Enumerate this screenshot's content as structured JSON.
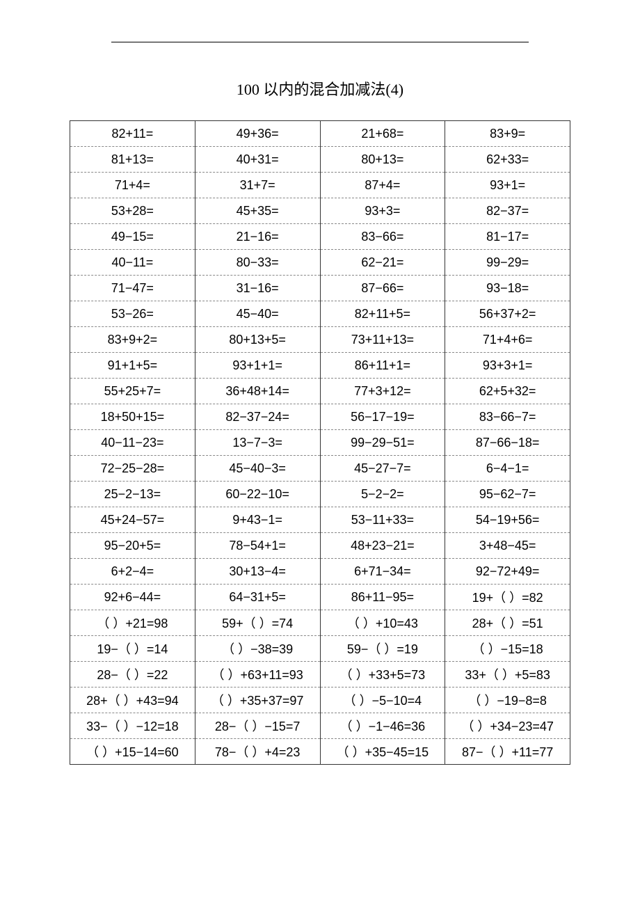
{
  "title": "100 以内的混合加减法(4)",
  "table": {
    "type": "table",
    "columns": 4,
    "cell_fontsize": 18,
    "title_fontsize": 22,
    "border_color": "#333333",
    "dash_border_color": "#888888",
    "background_color": "#ffffff",
    "text_color": "#000000",
    "rows": [
      [
        "82+11=",
        "49+36=",
        "21+68=",
        "83+9="
      ],
      [
        "81+13=",
        "40+31=",
        "80+13=",
        "62+33="
      ],
      [
        "71+4=",
        "31+7=",
        "87+4=",
        "93+1="
      ],
      [
        "53+28=",
        "45+35=",
        "93+3=",
        "82−37="
      ],
      [
        "49−15=",
        "21−16=",
        "83−66=",
        "81−17="
      ],
      [
        "40−11=",
        "80−33=",
        "62−21=",
        "99−29="
      ],
      [
        "71−47=",
        "31−16=",
        "87−66=",
        "93−18="
      ],
      [
        "53−26=",
        "45−40=",
        "82+11+5=",
        "56+37+2="
      ],
      [
        "83+9+2=",
        "80+13+5=",
        "73+11+13=",
        "71+4+6="
      ],
      [
        "91+1+5=",
        "93+1+1=",
        "86+11+1=",
        "93+3+1="
      ],
      [
        "55+25+7=",
        "36+48+14=",
        "77+3+12=",
        "62+5+32="
      ],
      [
        "18+50+15=",
        "82−37−24=",
        "56−17−19=",
        "83−66−7="
      ],
      [
        "40−11−23=",
        "13−7−3=",
        "99−29−51=",
        "87−66−18="
      ],
      [
        "72−25−28=",
        "45−40−3=",
        "45−27−7=",
        "6−4−1="
      ],
      [
        "25−2−13=",
        "60−22−10=",
        "5−2−2=",
        "95−62−7="
      ],
      [
        "45+24−57=",
        "9+43−1=",
        "53−11+33=",
        "54−19+56="
      ],
      [
        "95−20+5=",
        "78−54+1=",
        "48+23−21=",
        "3+48−45="
      ],
      [
        "6+2−4=",
        "30+13−4=",
        "6+71−34=",
        "92−72+49="
      ],
      [
        "92+6−44=",
        "64−31+5=",
        "86+11−95=",
        "19+（  ）=82"
      ],
      [
        "（  ）+21=98",
        "59+（  ）=74",
        "（  ）+10=43",
        "28+（  ）=51"
      ],
      [
        "19−（  ）=14",
        "（  ）−38=39",
        "59−（  ）=19",
        "（  ）−15=18"
      ],
      [
        "28−（  ）=22",
        "（  ）+63+11=93",
        "（  ）+33+5=73",
        "33+（  ）+5=83"
      ],
      [
        "28+（  ）+43=94",
        "（  ）+35+37=97",
        "（  ）−5−10=4",
        "（  ）−19−8=8"
      ],
      [
        "33−（  ）−12=18",
        "28−（  ）−15=7",
        "（  ）−1−46=36",
        "（  ）+34−23=47"
      ],
      [
        "（  ）+15−14=60",
        "78−（  ）+4=23",
        "（  ）+35−45=15",
        "87−（  ）+11=77"
      ]
    ]
  }
}
